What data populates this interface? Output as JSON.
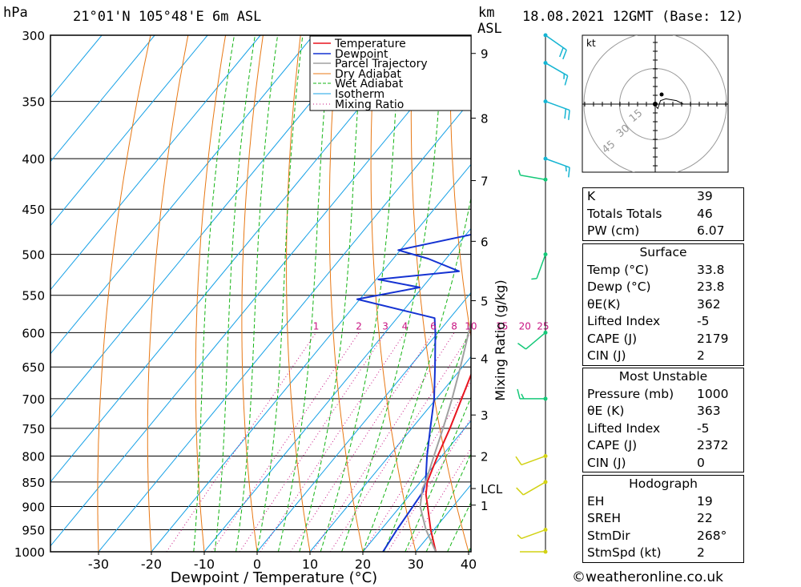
{
  "header": {
    "pressure_unit": "hPa",
    "location": "21°01'N  105°48'E  6m  ASL",
    "km_unit": "km",
    "asl_unit": "ASL",
    "datetime": "18.08.2021  12GMT  (Base: 12)"
  },
  "hodograph": {
    "unit": "kt",
    "ring_labels": [
      "15",
      "30",
      "45"
    ]
  },
  "indices": [
    {
      "label": "K",
      "value": "39"
    },
    {
      "label": "Totals Totals",
      "value": "46"
    },
    {
      "label": "PW (cm)",
      "value": "6.07"
    }
  ],
  "surface": {
    "title": "Surface",
    "rows": [
      {
        "label": "Temp (°C)",
        "value": "33.8"
      },
      {
        "label": "Dewp (°C)",
        "value": "23.8"
      },
      {
        "label": "θE(K)",
        "value": "362"
      },
      {
        "label": "Lifted Index",
        "value": "-5"
      },
      {
        "label": "CAPE (J)",
        "value": "2179"
      },
      {
        "label": "CIN (J)",
        "value": "2"
      }
    ]
  },
  "most_unstable": {
    "title": "Most Unstable",
    "rows": [
      {
        "label": "Pressure (mb)",
        "value": "1000"
      },
      {
        "label": "θE (K)",
        "value": "363"
      },
      {
        "label": "Lifted Index",
        "value": "-5"
      },
      {
        "label": "CAPE (J)",
        "value": "2372"
      },
      {
        "label": "CIN (J)",
        "value": "0"
      }
    ]
  },
  "hodograph_table": {
    "title": "Hodograph",
    "rows": [
      {
        "label": "EH",
        "value": "19"
      },
      {
        "label": "SREH",
        "value": "22"
      },
      {
        "label": "StmDir",
        "value": "268°"
      },
      {
        "label": "StmSpd (kt)",
        "value": "2"
      }
    ]
  },
  "credit": "©weatheronline.co.uk",
  "chart_data": {
    "type": "line",
    "xlabel": "Dewpoint / Temperature (°C)",
    "ylabel": "",
    "mixing_ratio_axis_label": "Mixing Ratio (g/kg)",
    "x_ticks": [
      -30,
      -20,
      -10,
      0,
      10,
      20,
      30,
      40
    ],
    "xlim": [
      -40,
      40
    ],
    "ylim": [
      1000,
      300
    ],
    "pressure_ticks": [
      300,
      350,
      400,
      450,
      500,
      550,
      600,
      650,
      700,
      750,
      800,
      850,
      900,
      950,
      1000
    ],
    "km_ticks": [
      {
        "label": "9",
        "p": 313
      },
      {
        "label": "8",
        "p": 364
      },
      {
        "label": "7",
        "p": 421
      },
      {
        "label": "6",
        "p": 485
      },
      {
        "label": "5",
        "p": 557
      },
      {
        "label": "4",
        "p": 637
      },
      {
        "label": "3",
        "p": 727
      },
      {
        "label": "2",
        "p": 800
      },
      {
        "label": "LCL",
        "p": 863
      },
      {
        "label": "1",
        "p": 897
      }
    ],
    "mixing_ratio_labels": [
      "1",
      "2",
      "3",
      "4",
      "6",
      "8",
      "10",
      "15",
      "20",
      "25"
    ],
    "mixing_ratios": [
      1,
      2,
      3,
      4,
      6,
      8,
      10,
      15,
      20,
      25
    ],
    "legend_position": "top-right",
    "legend": [
      {
        "name": "Temperature",
        "color": "#e8141e",
        "dash": false
      },
      {
        "name": "Dewpoint",
        "color": "#1432d2",
        "dash": false
      },
      {
        "name": "Parcel Trajectory",
        "color": "#a0a0a0",
        "dash": false
      },
      {
        "name": "Dry Adiabat",
        "color": "#e87814",
        "dash": false
      },
      {
        "name": "Wet Adiabat",
        "color": "#14b414",
        "dash": true
      },
      {
        "name": "Isotherm",
        "color": "#14a0e6",
        "dash": false
      },
      {
        "name": "Mixing Ratio",
        "color": "#c81482",
        "dash": "dot"
      }
    ],
    "series": [
      {
        "name": "Temperature",
        "color": "#e8141e",
        "points": [
          [
            1000,
            33.8
          ],
          [
            950,
            29.4
          ],
          [
            900,
            25.2
          ],
          [
            875,
            23.0
          ],
          [
            850,
            21.3
          ],
          [
            800,
            19.2
          ],
          [
            750,
            17.2
          ],
          [
            700,
            14.8
          ],
          [
            650,
            12.2
          ],
          [
            600,
            9.3
          ],
          [
            550,
            5.8
          ],
          [
            540,
            4.8
          ],
          [
            525,
            4.0
          ],
          [
            500,
            1.4
          ],
          [
            450,
            -2.6
          ],
          [
            420,
            -5.5
          ],
          [
            410,
            -5.3
          ],
          [
            400,
            -6.6
          ],
          [
            380,
            -9.4
          ],
          [
            370,
            -11.8
          ],
          [
            350,
            -14.6
          ]
        ]
      },
      {
        "name": "Dewpoint",
        "color": "#1432d2",
        "points": [
          [
            1000,
            23.8
          ],
          [
            950,
            23.0
          ],
          [
            900,
            22.4
          ],
          [
            870,
            22.0
          ],
          [
            850,
            21.0
          ],
          [
            800,
            17.2
          ],
          [
            750,
            13.5
          ],
          [
            700,
            9.6
          ],
          [
            650,
            4.8
          ],
          [
            600,
            -0.5
          ],
          [
            580,
            -2.9
          ],
          [
            555,
            -20.5
          ],
          [
            540,
            -10.5
          ],
          [
            530,
            -19.6
          ],
          [
            520,
            -5.6
          ],
          [
            505,
            -13.4
          ],
          [
            495,
            -20.4
          ],
          [
            475,
            -7.4
          ],
          [
            470,
            -1.0
          ],
          [
            450,
            -4.2
          ],
          [
            420,
            -7.5
          ],
          [
            402,
            -11.5
          ],
          [
            395,
            -11.2
          ],
          [
            385,
            -20.8
          ],
          [
            370,
            -13.6
          ],
          [
            365,
            -15.8
          ],
          [
            350,
            -24.5
          ],
          [
            343,
            -26.8
          ],
          [
            340,
            -26.8
          ],
          [
            335,
            -21.0
          ],
          [
            330,
            -13.8
          ],
          [
            320,
            -19.4
          ],
          [
            312,
            -52.0
          ],
          [
            304,
            -52.0
          ],
          [
            300,
            -55.8
          ]
        ]
      },
      {
        "name": "Parcel Trajectory",
        "color": "#a0a0a0",
        "points": [
          [
            1000,
            33.8
          ],
          [
            950,
            28.5
          ],
          [
            900,
            23.8
          ],
          [
            863,
            21.4
          ],
          [
            850,
            21.0
          ],
          [
            800,
            18.5
          ],
          [
            750,
            15.9
          ],
          [
            700,
            13.0
          ],
          [
            650,
            9.6
          ],
          [
            600,
            5.8
          ],
          [
            550,
            1.5
          ],
          [
            500,
            -3.4
          ],
          [
            450,
            -8.9
          ],
          [
            400,
            -15.1
          ],
          [
            350,
            -22.3
          ],
          [
            328,
            -25.8
          ]
        ]
      }
    ],
    "wind_barbs": [
      {
        "p": 1000,
        "dir": 270,
        "spd_kt": 4
      },
      {
        "p": 950,
        "dir": 250,
        "spd_kt": 5
      },
      {
        "p": 850,
        "dir": 240,
        "spd_kt": 10
      },
      {
        "p": 800,
        "dir": 250,
        "spd_kt": 10
      },
      {
        "p": 700,
        "dir": 270,
        "spd_kt": 15
      },
      {
        "p": 600,
        "dir": 230,
        "spd_kt": 10
      },
      {
        "p": 500,
        "dir": 200,
        "spd_kt": 5
      },
      {
        "p": 420,
        "dir": 280,
        "spd_kt": 5
      },
      {
        "p": 400,
        "dir": 110,
        "spd_kt": 15
      },
      {
        "p": 350,
        "dir": 110,
        "spd_kt": 20
      },
      {
        "p": 320,
        "dir": 120,
        "spd_kt": 15
      },
      {
        "p": 300,
        "dir": 125,
        "spd_kt": 20
      }
    ],
    "hodograph_points": [
      [
        0.5,
        -1.5
      ],
      [
        1.5,
        -2.5
      ],
      [
        3,
        2
      ],
      [
        6,
        3
      ],
      [
        12,
        2
      ],
      [
        16,
        0
      ]
    ]
  }
}
